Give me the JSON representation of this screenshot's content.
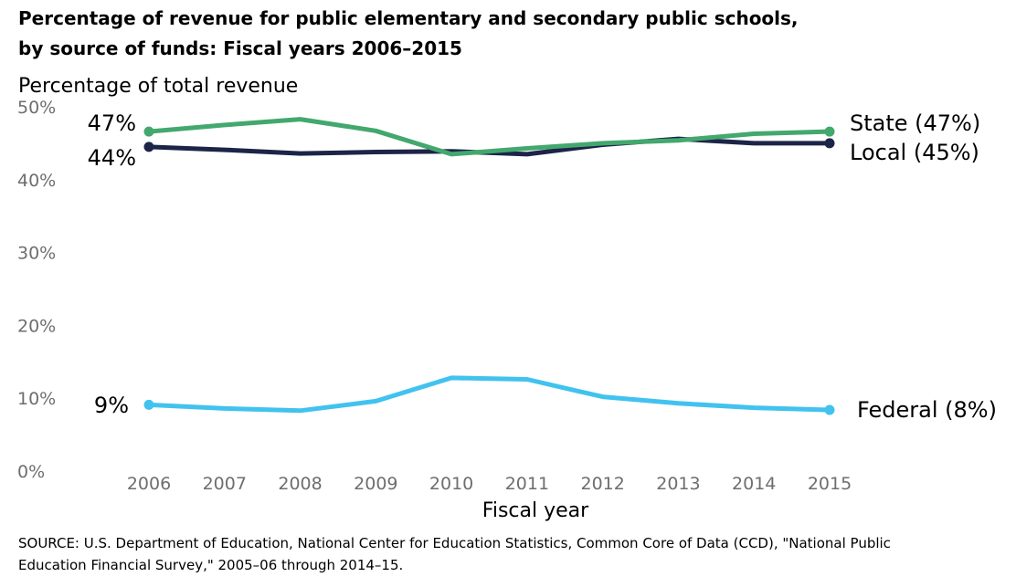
{
  "title_line1": "Percentage of revenue for public elementary and secondary public schools,",
  "title_line2": "by source of funds: Fiscal years 2006–2015",
  "source_line1": "SOURCE: U.S. Department of Education, National Center for Education Statistics, Common Core of Data (CCD), \"National Public",
  "source_line2": "Education Financial Survey,\" 2005–06 through 2014–15.",
  "chart_data": {
    "type": "line",
    "ylabel": "Percentage of total revenue",
    "xlabel": "Fiscal year",
    "x": [
      2006,
      2007,
      2008,
      2009,
      2010,
      2011,
      2012,
      2013,
      2014,
      2015
    ],
    "ylim": [
      0,
      50
    ],
    "yticks": [
      "0%",
      "10%",
      "20%",
      "30%",
      "40%",
      "50%"
    ],
    "grid": false,
    "legend": "end-of-line labels",
    "series": [
      {
        "name": "State",
        "color": "#43a86e",
        "values": [
          46.6,
          47.5,
          48.3,
          46.7,
          43.5,
          44.3,
          45.0,
          45.4,
          46.3,
          46.6
        ],
        "start_label": "47%",
        "end_label": "State (47%)"
      },
      {
        "name": "Local",
        "color": "#1c2448",
        "values": [
          44.5,
          44.1,
          43.6,
          43.8,
          43.9,
          43.5,
          44.8,
          45.6,
          45.0,
          45.0
        ],
        "start_label": "44%",
        "end_label": "Local (45%)"
      },
      {
        "name": "Federal",
        "color": "#41c2ef",
        "values": [
          9.1,
          8.6,
          8.3,
          9.6,
          12.8,
          12.6,
          10.2,
          9.3,
          8.7,
          8.4
        ],
        "start_label": "9%",
        "end_label": "Federal (8%)"
      }
    ]
  }
}
